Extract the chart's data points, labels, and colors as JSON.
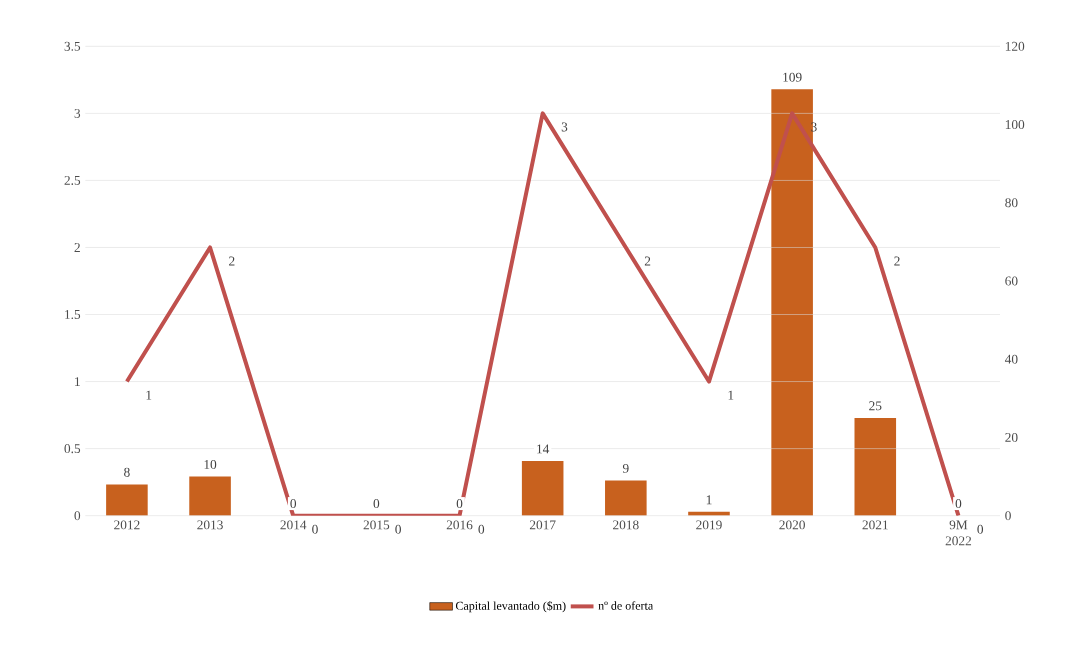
{
  "chart_data": {
    "type": "bar",
    "categories": [
      "2012",
      "2013",
      "2014",
      "2015",
      "2016",
      "2017",
      "2018",
      "2019",
      "2020",
      "2021",
      "9M 2022"
    ],
    "series": [
      {
        "name": "Capital levantado ($m)",
        "axis": "y2",
        "color": "#c8611e",
        "values": [
          8,
          10,
          0,
          0,
          0,
          14,
          9,
          1,
          109,
          25,
          0
        ]
      },
      {
        "name": "nº de oferta",
        "type": "line",
        "color": "#c0504d",
        "values": [
          1,
          2,
          0,
          0,
          0,
          3,
          2,
          1,
          3,
          2,
          0
        ]
      }
    ],
    "ylim": [
      0,
      3.5
    ],
    "yticks": [
      0,
      0.5,
      1,
      1.5,
      2,
      2.5,
      3,
      3.5
    ],
    "y2lim": [
      0,
      120
    ],
    "y2ticks": [
      0,
      20,
      40,
      60,
      80,
      100,
      120
    ],
    "grid": "y",
    "legend": "bottom",
    "data_labels": true,
    "marker": "none",
    "line_style": "solid"
  }
}
